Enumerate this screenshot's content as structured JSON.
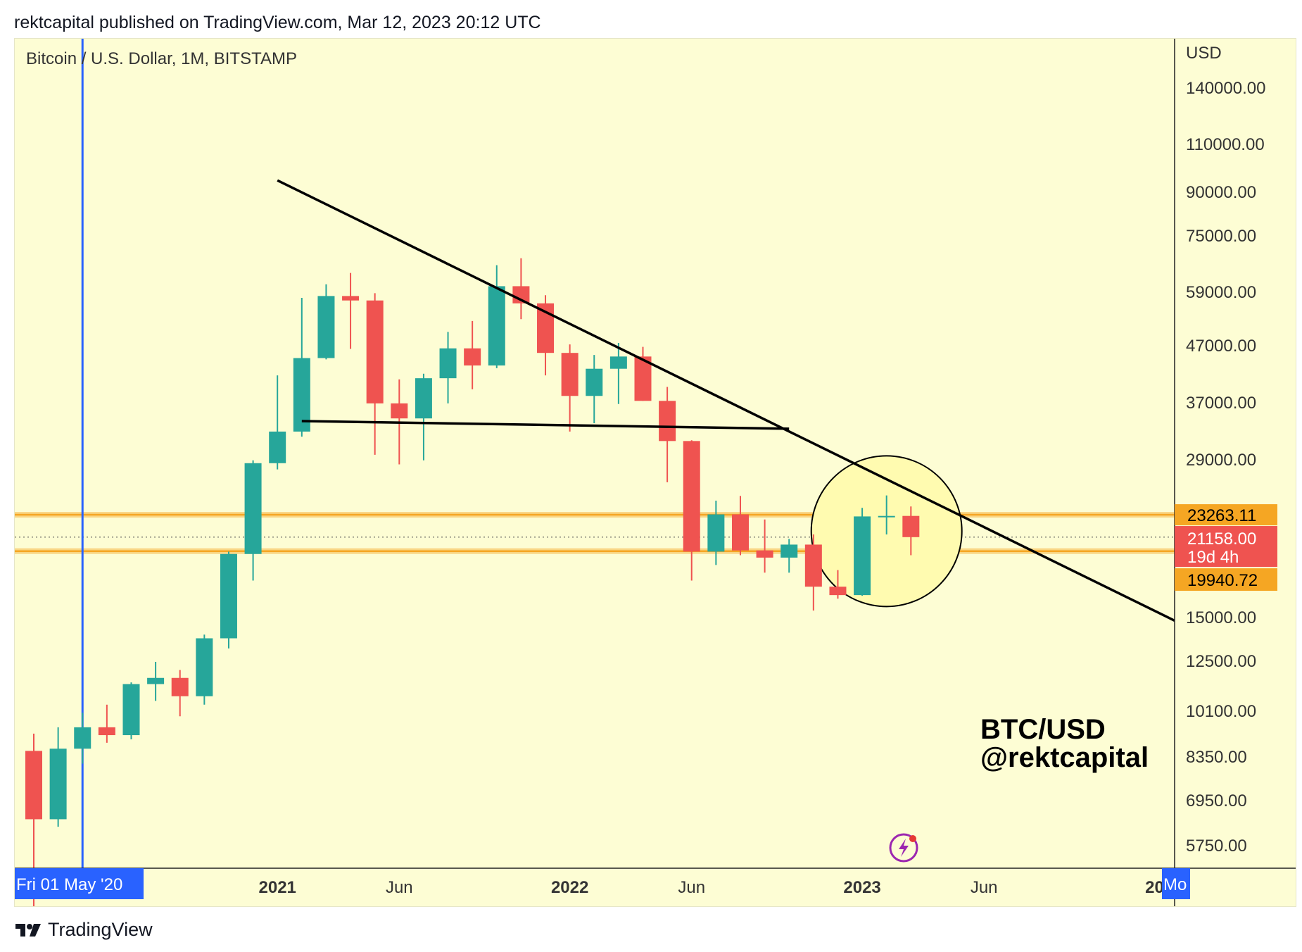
{
  "header": {
    "published_line": "rektcapital published on TradingView.com, Mar 12, 2023 20:12 UTC"
  },
  "footer": {
    "brand_name": "TradingView",
    "brand_icon": "tradingview-logo-icon"
  },
  "colors": {
    "background": "#fdfdd4",
    "bull": "#26a69a",
    "bear": "#ef5350",
    "level_band": "#f5a623",
    "cursor_line": "#2962ff",
    "trendline": "#000000",
    "highlight_circle": "#fffbb0"
  },
  "chart_data": {
    "type": "candlestick",
    "title": "Bitcoin / U.S. Dollar, 1M, BITSTAMP",
    "symbol": "BTC/USD",
    "timeframe": "1M",
    "exchange": "BITSTAMP",
    "y_scale": "log",
    "ylim": [
      5200,
      175000
    ],
    "currency_label": "USD",
    "y_ticks": [
      "140000.00",
      "110000.00",
      "90000.00",
      "75000.00",
      "59000.00",
      "47000.00",
      "37000.00",
      "29000.00",
      "15000.00",
      "12500.00",
      "10100.00",
      "8350.00",
      "6950.00",
      "5750.00"
    ],
    "x_ticks": [
      "2021",
      "Jun",
      "2022",
      "Jun",
      "2023",
      "Jun",
      "20"
    ],
    "x_ticks_bold": [
      "2021",
      "2022",
      "2023",
      "20"
    ],
    "crosshair_date_label": "Fri 01 May '20",
    "crosshair_price_tag_right": "Mo",
    "price_labels": {
      "upper_level": "23263.11",
      "current_price": "21158.00",
      "countdown": "19d 4h",
      "lower_level": "19940.72"
    },
    "levels": {
      "upper": 23263.11,
      "lower": 19940.72,
      "current": 21158.0
    },
    "watermark_line1": "BTC/USD",
    "watermark_line2": "@rektcapital",
    "candles": [
      {
        "date": "2020-03",
        "open": 8550,
        "high": 9200,
        "low": 4100,
        "close": 6400
      },
      {
        "date": "2020-04",
        "open": 6400,
        "high": 9450,
        "low": 6200,
        "close": 8630
      },
      {
        "date": "2020-05",
        "open": 8630,
        "high": 10050,
        "low": 8100,
        "close": 9450
      },
      {
        "date": "2020-06",
        "open": 9450,
        "high": 10400,
        "low": 8850,
        "close": 9140
      },
      {
        "date": "2020-07",
        "open": 9140,
        "high": 11430,
        "low": 8980,
        "close": 11350
      },
      {
        "date": "2020-08",
        "open": 11350,
        "high": 12470,
        "low": 10570,
        "close": 11650
      },
      {
        "date": "2020-09",
        "open": 11650,
        "high": 12050,
        "low": 9900,
        "close": 10780
      },
      {
        "date": "2020-10",
        "open": 10780,
        "high": 14000,
        "low": 10400,
        "close": 13780
      },
      {
        "date": "2020-11",
        "open": 13780,
        "high": 19900,
        "low": 13200,
        "close": 19700
      },
      {
        "date": "2020-12",
        "open": 19700,
        "high": 29300,
        "low": 17600,
        "close": 28950
      },
      {
        "date": "2021-01",
        "open": 28950,
        "high": 42000,
        "low": 28200,
        "close": 33100
      },
      {
        "date": "2021-02",
        "open": 33100,
        "high": 58350,
        "low": 32400,
        "close": 45200
      },
      {
        "date": "2021-03",
        "open": 45200,
        "high": 61800,
        "low": 44950,
        "close": 58800
      },
      {
        "date": "2021-04",
        "open": 58800,
        "high": 64850,
        "low": 47000,
        "close": 57700
      },
      {
        "date": "2021-05",
        "open": 57700,
        "high": 59500,
        "low": 30000,
        "close": 37300
      },
      {
        "date": "2021-06",
        "open": 37300,
        "high": 41300,
        "low": 28800,
        "close": 35000
      },
      {
        "date": "2021-07",
        "open": 35000,
        "high": 42300,
        "low": 29300,
        "close": 41500
      },
      {
        "date": "2021-08",
        "open": 41500,
        "high": 50500,
        "low": 37300,
        "close": 47100
      },
      {
        "date": "2021-09",
        "open": 47100,
        "high": 52900,
        "low": 39600,
        "close": 43800
      },
      {
        "date": "2021-10",
        "open": 43800,
        "high": 67000,
        "low": 43300,
        "close": 61300
      },
      {
        "date": "2021-11",
        "open": 61300,
        "high": 69000,
        "low": 53300,
        "close": 57000
      },
      {
        "date": "2021-12",
        "open": 57000,
        "high": 59000,
        "low": 42000,
        "close": 46200
      },
      {
        "date": "2022-01",
        "open": 46200,
        "high": 47900,
        "low": 33100,
        "close": 38500
      },
      {
        "date": "2022-02",
        "open": 38500,
        "high": 45800,
        "low": 34300,
        "close": 43200
      },
      {
        "date": "2022-03",
        "open": 43200,
        "high": 48200,
        "low": 37200,
        "close": 45500
      },
      {
        "date": "2022-04",
        "open": 45500,
        "high": 47400,
        "low": 37700,
        "close": 37700
      },
      {
        "date": "2022-05",
        "open": 37700,
        "high": 40000,
        "low": 26700,
        "close": 31800
      },
      {
        "date": "2022-06",
        "open": 31800,
        "high": 31900,
        "low": 17600,
        "close": 19900
      },
      {
        "date": "2022-07",
        "open": 19900,
        "high": 24700,
        "low": 18800,
        "close": 23300
      },
      {
        "date": "2022-08",
        "open": 23300,
        "high": 25200,
        "low": 19600,
        "close": 20000
      },
      {
        "date": "2022-09",
        "open": 20000,
        "high": 22800,
        "low": 18200,
        "close": 19400
      },
      {
        "date": "2022-10",
        "open": 19400,
        "high": 21000,
        "low": 18200,
        "close": 20500
      },
      {
        "date": "2022-11",
        "open": 20500,
        "high": 21400,
        "low": 15500,
        "close": 17150
      },
      {
        "date": "2022-12",
        "open": 17150,
        "high": 18400,
        "low": 16300,
        "close": 16550
      },
      {
        "date": "2023-01",
        "open": 16550,
        "high": 23950,
        "low": 16500,
        "close": 23100
      },
      {
        "date": "2023-02",
        "open": 23100,
        "high": 25250,
        "low": 21400,
        "close": 23150
      },
      {
        "date": "2023-03",
        "open": 23150,
        "high": 24100,
        "low": 19600,
        "close": 21158
      }
    ],
    "annotations": [
      {
        "type": "trendline",
        "name": "descending-trendline",
        "points": [
          [
            "2021-01",
            96000
          ],
          [
            "2024-04",
            13300
          ]
        ]
      },
      {
        "type": "horizontal-segment",
        "name": "range-low-line",
        "points": [
          [
            "2021-02",
            34600
          ],
          [
            "2022-10",
            33500
          ]
        ]
      },
      {
        "type": "circle",
        "name": "highlight-circle",
        "center": [
          "2023-02",
          21700
        ]
      },
      {
        "type": "vertical-line",
        "name": "crosshair-vertical",
        "at": "2020-05"
      }
    ]
  }
}
